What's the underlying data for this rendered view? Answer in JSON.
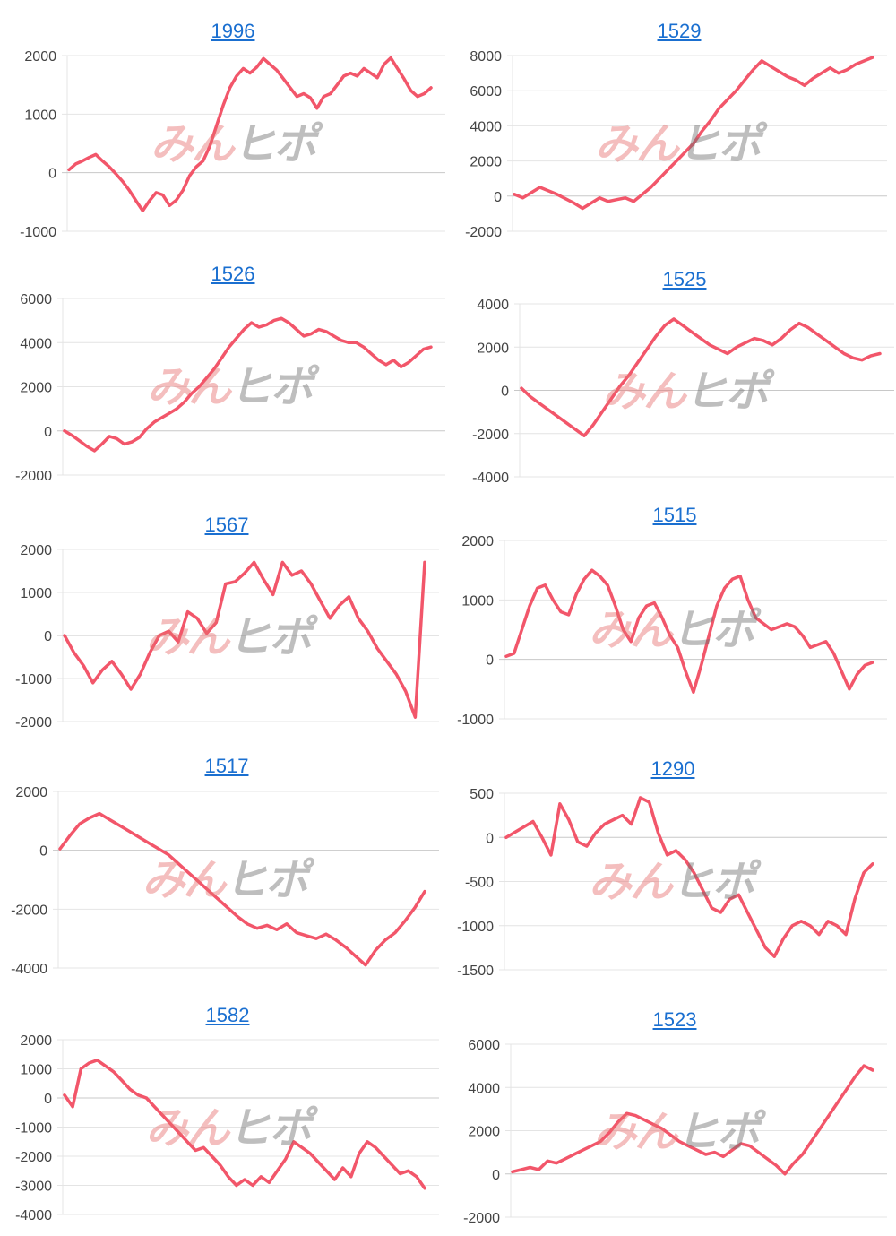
{
  "watermark": {
    "part1": "みん",
    "part2": "ヒポ"
  },
  "colors": {
    "line": "#f2566a",
    "title": "#1a6fd0",
    "grid": "#e4e4e4",
    "zero": "#c8c8c8",
    "tick": "#444444"
  },
  "chart_data": [
    {
      "type": "line",
      "title": "1996",
      "yticks": [
        2000,
        1000,
        0,
        -1000
      ],
      "ylim": [
        -1000,
        2000
      ],
      "values": [
        50,
        150,
        200,
        260,
        310,
        200,
        100,
        -20,
        -150,
        -300,
        -480,
        -650,
        -480,
        -340,
        -380,
        -560,
        -470,
        -300,
        -50,
        100,
        200,
        450,
        800,
        1150,
        1450,
        1650,
        1780,
        1700,
        1800,
        1950,
        1850,
        1750,
        1600,
        1450,
        1300,
        1350,
        1280,
        1100,
        1300,
        1350,
        1500,
        1650,
        1700,
        1650,
        1780,
        1700,
        1620,
        1850,
        1960,
        1780,
        1600,
        1400,
        1300,
        1350,
        1450
      ]
    },
    {
      "type": "line",
      "title": "1529",
      "yticks": [
        8000,
        6000,
        4000,
        2000,
        0,
        -2000
      ],
      "ylim": [
        -2000,
        8000
      ],
      "values": [
        100,
        -100,
        200,
        500,
        300,
        100,
        -150,
        -400,
        -700,
        -400,
        -100,
        -300,
        -200,
        -100,
        -300,
        100,
        500,
        1000,
        1500,
        2000,
        2500,
        3000,
        3700,
        4300,
        5000,
        5500,
        6000,
        6600,
        7200,
        7700,
        7400,
        7100,
        6800,
        6600,
        6300,
        6700,
        7000,
        7300,
        7000,
        7200,
        7500,
        7700,
        7900
      ]
    },
    {
      "type": "line",
      "title": "1526",
      "yticks": [
        6000,
        4000,
        2000,
        0,
        -2000
      ],
      "ylim": [
        -2000,
        6000
      ],
      "values": [
        0,
        -200,
        -450,
        -700,
        -900,
        -600,
        -250,
        -350,
        -600,
        -500,
        -300,
        100,
        400,
        600,
        800,
        1000,
        1300,
        1700,
        2000,
        2400,
        2800,
        3300,
        3800,
        4200,
        4600,
        4900,
        4700,
        4800,
        5000,
        5100,
        4900,
        4600,
        4300,
        4400,
        4600,
        4500,
        4300,
        4100,
        4000,
        4000,
        3800,
        3500,
        3200,
        3000,
        3200,
        2900,
        3100,
        3400,
        3700,
        3800
      ]
    },
    {
      "type": "line",
      "title": "1525",
      "yticks": [
        4000,
        2000,
        0,
        -2000,
        -4000
      ],
      "ylim": [
        -4000,
        4000
      ],
      "values": [
        100,
        -300,
        -600,
        -900,
        -1200,
        -1500,
        -1800,
        -2100,
        -1600,
        -1000,
        -400,
        200,
        700,
        1300,
        1900,
        2500,
        3000,
        3300,
        3000,
        2700,
        2400,
        2100,
        1900,
        1700,
        2000,
        2200,
        2400,
        2300,
        2100,
        2400,
        2800,
        3100,
        2900,
        2600,
        2300,
        2000,
        1700,
        1500,
        1400,
        1600,
        1700
      ]
    },
    {
      "type": "line",
      "title": "1567",
      "yticks": [
        2000,
        1000,
        0,
        -1000,
        -2000
      ],
      "ylim": [
        -2000,
        2000
      ],
      "values": [
        0,
        -400,
        -700,
        -1100,
        -800,
        -600,
        -900,
        -1250,
        -900,
        -400,
        0,
        100,
        -150,
        550,
        400,
        50,
        300,
        1200,
        1250,
        1450,
        1700,
        1300,
        950,
        1700,
        1400,
        1500,
        1200,
        800,
        400,
        700,
        900,
        400,
        100,
        -300,
        -600,
        -900,
        -1300,
        -1900,
        1700
      ]
    },
    {
      "type": "line",
      "title": "1515",
      "yticks": [
        2000,
        1000,
        0,
        -1000
      ],
      "ylim": [
        -1000,
        2000
      ],
      "values": [
        50,
        100,
        500,
        900,
        1200,
        1250,
        1000,
        800,
        750,
        1100,
        1350,
        1500,
        1400,
        1250,
        900,
        500,
        300,
        700,
        900,
        950,
        700,
        400,
        200,
        -200,
        -550,
        -100,
        400,
        900,
        1200,
        1350,
        1400,
        1000,
        700,
        600,
        500,
        550,
        600,
        550,
        400,
        200,
        250,
        300,
        100,
        -200,
        -500,
        -250,
        -100,
        -50
      ]
    },
    {
      "type": "line",
      "title": "1517",
      "yticks": [
        2000,
        0,
        -2000,
        -4000
      ],
      "ylim": [
        -4000,
        2000
      ],
      "values": [
        50,
        500,
        900,
        1100,
        1250,
        1050,
        850,
        650,
        450,
        250,
        50,
        -150,
        -450,
        -750,
        -1050,
        -1350,
        -1650,
        -1950,
        -2250,
        -2500,
        -2650,
        -2550,
        -2700,
        -2500,
        -2800,
        -2900,
        -3000,
        -2850,
        -3050,
        -3300,
        -3600,
        -3900,
        -3400,
        -3050,
        -2800,
        -2400,
        -1950,
        -1400
      ]
    },
    {
      "type": "line",
      "title": "1290",
      "yticks": [
        500,
        0,
        -500,
        -1000,
        -1500
      ],
      "ylim": [
        -1500,
        500
      ],
      "values": [
        0,
        60,
        120,
        180,
        0,
        -200,
        380,
        200,
        -50,
        -100,
        50,
        150,
        200,
        250,
        150,
        450,
        400,
        50,
        -200,
        -150,
        -250,
        -400,
        -600,
        -800,
        -850,
        -700,
        -650,
        -850,
        -1050,
        -1250,
        -1350,
        -1150,
        -1000,
        -950,
        -1000,
        -1100,
        -950,
        -1000,
        -1100,
        -700,
        -400,
        -300
      ]
    },
    {
      "type": "line",
      "title": "1582",
      "yticks": [
        2000,
        1000,
        0,
        -1000,
        -2000,
        -3000,
        -4000
      ],
      "ylim": [
        -4000,
        2000
      ],
      "values": [
        100,
        -300,
        1000,
        1200,
        1300,
        1100,
        900,
        600,
        300,
        100,
        0,
        -300,
        -600,
        -900,
        -1200,
        -1500,
        -1800,
        -1700,
        -2000,
        -2300,
        -2700,
        -3000,
        -2800,
        -3000,
        -2700,
        -2900,
        -2500,
        -2100,
        -1500,
        -1700,
        -1900,
        -2200,
        -2500,
        -2800,
        -2400,
        -2700,
        -1900,
        -1500,
        -1700,
        -2000,
        -2300,
        -2600,
        -2500,
        -2700,
        -3100
      ]
    },
    {
      "type": "line",
      "title": "1523",
      "yticks": [
        6000,
        4000,
        2000,
        0,
        -2000
      ],
      "ylim": [
        -2000,
        6000
      ],
      "values": [
        100,
        200,
        300,
        200,
        600,
        500,
        700,
        900,
        1100,
        1300,
        1500,
        1900,
        2400,
        2800,
        2700,
        2500,
        2300,
        2100,
        1800,
        1500,
        1300,
        1100,
        900,
        1000,
        800,
        1100,
        1400,
        1300,
        1000,
        700,
        400,
        0,
        500,
        900,
        1500,
        2100,
        2700,
        3300,
        3900,
        4500,
        5000,
        4800
      ]
    }
  ]
}
